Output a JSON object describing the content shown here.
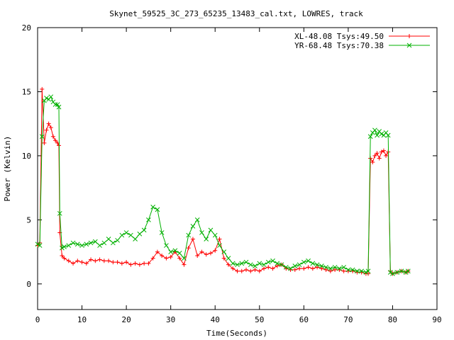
{
  "chart_data": {
    "type": "line",
    "title": "Skynet_59525_3C_273_65235_13483_cal.txt, LOWRES, track",
    "xlabel": "Time(Seconds)",
    "ylabel": "Power (Kelvin)",
    "xlim": [
      0,
      90
    ],
    "ylim": [
      -2,
      20
    ],
    "x_ticks": [
      0,
      10,
      20,
      30,
      40,
      50,
      60,
      70,
      80,
      90
    ],
    "y_ticks": [
      0,
      5,
      10,
      15,
      20
    ],
    "grid": false,
    "legend_position": "top-right",
    "series": [
      {
        "name": "XL-48.08 Tsys:49.50",
        "color": "#ff0000",
        "marker": "plus",
        "x": [
          0,
          0.5,
          1,
          1.5,
          2,
          2.5,
          3,
          3.5,
          4,
          4.5,
          4.8,
          5,
          5.5,
          6,
          7,
          8,
          9,
          10,
          11,
          12,
          13,
          14,
          15,
          16,
          17,
          18,
          19,
          20,
          21,
          22,
          23,
          24,
          25,
          26,
          27,
          28,
          29,
          30,
          31,
          32,
          33,
          34,
          35,
          36,
          37,
          38,
          39,
          40,
          41,
          42,
          43,
          44,
          45,
          46,
          47,
          48,
          49,
          50,
          51,
          52,
          53,
          54,
          55,
          56,
          57,
          58,
          59,
          60,
          61,
          62,
          63,
          64,
          65,
          66,
          67,
          68,
          69,
          70,
          71,
          72,
          73,
          74,
          74.5,
          75,
          75.5,
          76,
          76.5,
          77,
          77.5,
          78,
          78.5,
          79,
          79.5,
          80,
          81,
          82,
          83,
          83.5
        ],
        "values": [
          3.0,
          3.2,
          15.2,
          11.0,
          12.0,
          12.5,
          12.2,
          11.5,
          11.2,
          11.0,
          10.8,
          4.0,
          2.2,
          2.0,
          1.8,
          1.6,
          1.8,
          1.7,
          1.6,
          1.9,
          1.8,
          1.9,
          1.8,
          1.8,
          1.7,
          1.7,
          1.6,
          1.7,
          1.5,
          1.6,
          1.5,
          1.6,
          1.6,
          2.0,
          2.5,
          2.2,
          2.0,
          2.1,
          2.5,
          2.0,
          1.5,
          2.8,
          3.5,
          2.2,
          2.5,
          2.3,
          2.4,
          2.6,
          3.5,
          2.0,
          1.5,
          1.2,
          1.0,
          1.0,
          1.1,
          1.0,
          1.1,
          1.0,
          1.2,
          1.3,
          1.2,
          1.4,
          1.5,
          1.2,
          1.1,
          1.1,
          1.2,
          1.2,
          1.3,
          1.2,
          1.3,
          1.2,
          1.1,
          1.0,
          1.1,
          1.1,
          1.0,
          1.0,
          1.0,
          0.9,
          0.9,
          0.8,
          0.8,
          9.8,
          9.5,
          10.0,
          10.2,
          9.8,
          10.3,
          10.4,
          10.0,
          10.3,
          1.0,
          0.8,
          0.9,
          1.0,
          0.9,
          1.0
        ]
      },
      {
        "name": "YR-68.48 Tsys:70.38",
        "color": "#00b000",
        "marker": "x",
        "x": [
          0,
          0.5,
          1,
          1.5,
          2,
          2.5,
          3,
          3.5,
          4,
          4.5,
          4.8,
          5,
          5.5,
          6,
          7,
          8,
          9,
          10,
          11,
          12,
          13,
          14,
          15,
          16,
          17,
          18,
          19,
          20,
          21,
          22,
          23,
          24,
          25,
          26,
          27,
          28,
          29,
          30,
          31,
          32,
          33,
          34,
          35,
          36,
          37,
          38,
          39,
          40,
          41,
          42,
          43,
          44,
          45,
          46,
          47,
          48,
          49,
          50,
          51,
          52,
          53,
          54,
          55,
          56,
          57,
          58,
          59,
          60,
          61,
          62,
          63,
          64,
          65,
          66,
          67,
          68,
          69,
          70,
          71,
          72,
          73,
          74,
          74.5,
          75,
          75.5,
          76,
          76.5,
          77,
          77.5,
          78,
          78.5,
          79,
          79.5,
          80,
          81,
          82,
          83,
          83.5
        ],
        "values": [
          3.1,
          3.0,
          11.5,
          14.3,
          14.5,
          14.4,
          14.6,
          14.2,
          14.0,
          14.0,
          13.8,
          5.5,
          2.8,
          2.9,
          3.0,
          3.2,
          3.1,
          3.0,
          3.1,
          3.2,
          3.3,
          3.0,
          3.2,
          3.5,
          3.2,
          3.4,
          3.8,
          4.0,
          3.8,
          3.5,
          3.9,
          4.2,
          5.0,
          6.0,
          5.8,
          4.0,
          3.0,
          2.5,
          2.6,
          2.4,
          2.0,
          3.8,
          4.5,
          5.0,
          4.0,
          3.5,
          4.2,
          3.8,
          3.0,
          2.5,
          2.0,
          1.6,
          1.5,
          1.6,
          1.7,
          1.5,
          1.4,
          1.6,
          1.5,
          1.7,
          1.8,
          1.6,
          1.5,
          1.3,
          1.2,
          1.4,
          1.5,
          1.7,
          1.8,
          1.6,
          1.5,
          1.4,
          1.3,
          1.2,
          1.3,
          1.2,
          1.3,
          1.1,
          1.1,
          1.0,
          1.0,
          0.9,
          1.0,
          11.5,
          11.8,
          12.0,
          11.6,
          11.9,
          11.7,
          11.6,
          11.8,
          11.6,
          0.9,
          0.8,
          0.9,
          1.0,
          0.9,
          1.0
        ]
      }
    ]
  }
}
